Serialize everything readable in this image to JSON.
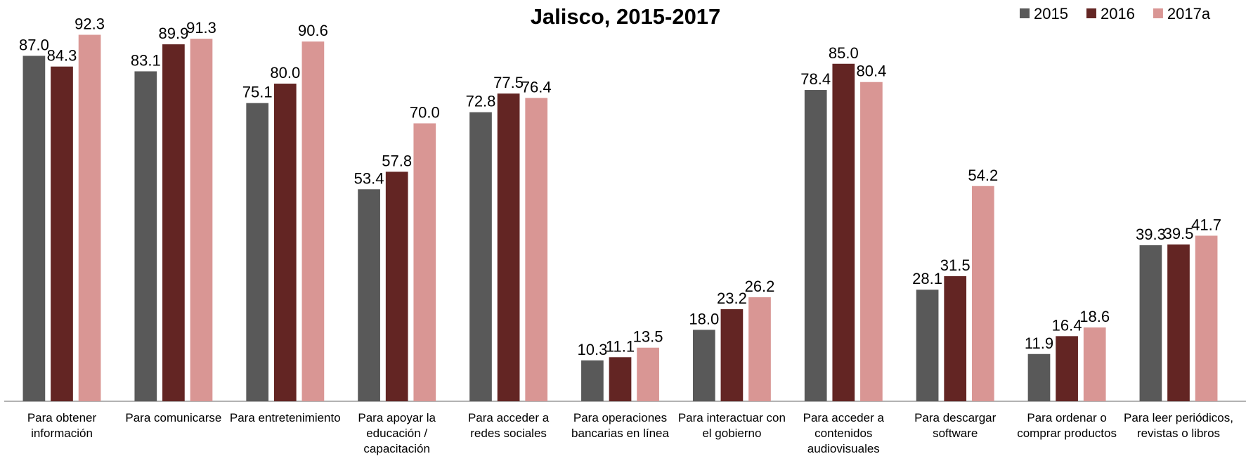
{
  "chart_data": {
    "type": "bar",
    "title": "Jalisco, 2015-2017",
    "categories": [
      "Para obtener información",
      "Para comunicarse",
      "Para entretenimiento",
      "Para apoyar la educación / capacitación",
      "Para acceder a redes sociales",
      "Para operaciones bancarias en línea",
      "Para interactuar con el gobierno",
      "Para acceder a contenidos audiovisuales",
      "Para descargar software",
      "Para ordenar o comprar productos",
      "Para leer periódicos, revistas o libros"
    ],
    "series": [
      {
        "name": "2015",
        "color": "#595959",
        "values": [
          87.0,
          83.1,
          75.1,
          53.4,
          72.8,
          10.3,
          18.0,
          78.4,
          28.1,
          11.9,
          39.3
        ],
        "value_labels": [
          "87.0",
          "83.1",
          "75.1",
          "53.4",
          "72.8",
          "10.3",
          "18.0",
          "78.4",
          "28.1",
          "11.9",
          "39.3"
        ]
      },
      {
        "name": "2016",
        "color": "#632523",
        "values": [
          84.3,
          89.9,
          80.0,
          57.8,
          77.5,
          11.1,
          23.2,
          85.0,
          31.5,
          16.4,
          39.5
        ],
        "value_labels": [
          "84.3",
          "89.9",
          "80.0",
          "57.8",
          "77.5",
          "11.1",
          "23.2",
          "85.0",
          "31.5",
          "16.4",
          "39.5"
        ]
      },
      {
        "name": "2017a",
        "color": "#d99694",
        "values": [
          92.3,
          91.3,
          90.6,
          70.0,
          76.4,
          13.5,
          26.2,
          80.4,
          54.2,
          18.6,
          41.7
        ],
        "value_labels": [
          "92.3",
          "91.3",
          "90.6",
          "70.0",
          "76.4",
          "13.5",
          "26.2",
          "80.4",
          "54.2",
          "18.6",
          "41.7"
        ]
      }
    ],
    "ylim": [
      0,
      100
    ],
    "legend": "top-right"
  }
}
